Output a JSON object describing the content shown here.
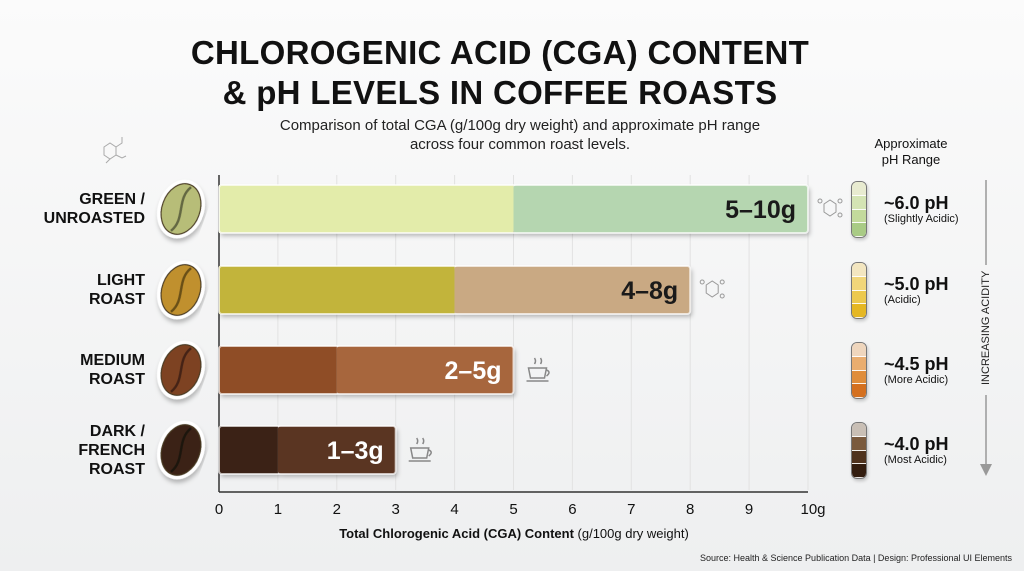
{
  "title_line1": "CHLOROGENIC ACID (CGA) CONTENT",
  "title_line2": "& pH LEVELS IN COFFEE ROASTS",
  "subtitle_line1": "Comparison of total CGA (g/100g dry weight) and approximate pH range",
  "subtitle_line2": "across four common roast levels.",
  "ph_header_line1": "Approximate",
  "ph_header_line2": "pH Range",
  "acidity_arrow_label": "INCREASING ACIDITY",
  "source": "Source: Health & Science Publication Data | Design: Professional UI Elements",
  "chart_data": {
    "type": "bar",
    "orientation": "horizontal",
    "xlabel_bold": "Total Chlorogenic Acid (CGA) Content",
    "xlabel_unit": "(g/100g dry weight)",
    "xlim": [
      0,
      10
    ],
    "xticks": [
      "0",
      "1",
      "2",
      "3",
      "4",
      "5",
      "6",
      "7",
      "8",
      "9",
      "10g"
    ],
    "grid": true,
    "categories": [
      {
        "line1": "GREEN /",
        "line2": "UNROASTED",
        "min": 5,
        "max": 10,
        "label": "5–10g",
        "colors": [
          "#e3ecaa",
          "#b5d6b0"
        ],
        "bean": "#b7bd78",
        "ph": "~6.0 pH",
        "ph_desc": "(Slightly Acidic)",
        "tube": [
          "#e8ebd0",
          "#d4e4b4",
          "#c3da9c",
          "#a9cb85"
        ]
      },
      {
        "line1": "LIGHT",
        "line2": "ROAST",
        "min": 4,
        "max": 8,
        "label": "4–8g",
        "colors": [
          "#c2b43a",
          "#c9a983"
        ],
        "bean": "#c0902f",
        "ph": "~5.0 pH",
        "ph_desc": "(Acidic)",
        "tube": [
          "#f3e6c0",
          "#f1d67a",
          "#ecc94e",
          "#e5b723"
        ]
      },
      {
        "line1": "MEDIUM",
        "line2": "ROAST",
        "min": 2,
        "max": 5,
        "label": "2–5g",
        "colors": [
          "#8f4e25",
          "#a7663d"
        ],
        "bean": "#7d4322",
        "ph": "~4.5 pH",
        "ph_desc": "(More Acidic)",
        "tube": [
          "#efd6bd",
          "#e9ad6f",
          "#df8d3b",
          "#d4701f"
        ]
      },
      {
        "line1": "DARK /",
        "line2": "FRENCH",
        "line3": "ROAST",
        "min": 1,
        "max": 3,
        "label": "1–3g",
        "colors": [
          "#3b2216",
          "#5a3624"
        ],
        "bean": "#3a2418",
        "ph": "~4.0 pH",
        "ph_desc": "(Most Acidic)",
        "tube": [
          "#c9bfb5",
          "#7a5a3d",
          "#4f321d",
          "#331d0f"
        ]
      }
    ]
  }
}
